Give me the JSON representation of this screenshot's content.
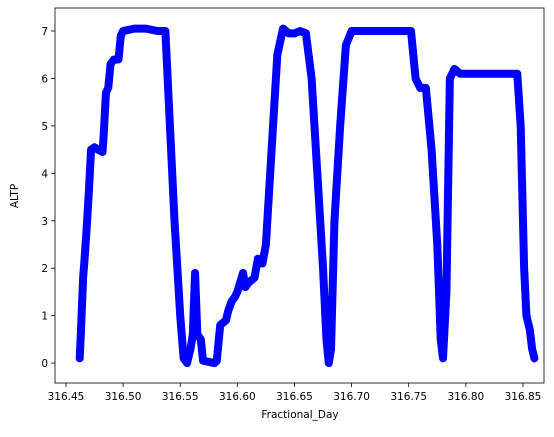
{
  "chart_data": {
    "type": "line",
    "xlabel": "Fractional_Day",
    "ylabel": "ALTP",
    "color": "#0000ff",
    "x": [
      316.462,
      316.463,
      316.465,
      316.466,
      316.468,
      316.47,
      316.472,
      316.475,
      316.478,
      316.482,
      316.483,
      316.485,
      316.487,
      316.489,
      316.492,
      316.496,
      316.498,
      316.5,
      316.51,
      316.52,
      316.53,
      316.537,
      316.54,
      316.545,
      316.55,
      316.553,
      316.556,
      316.559,
      316.561,
      316.563,
      316.565,
      316.568,
      316.57,
      316.58,
      316.582,
      316.585,
      316.59,
      316.592,
      316.595,
      316.598,
      316.6,
      316.605,
      316.607,
      316.61,
      316.615,
      316.618,
      316.622,
      316.625,
      316.63,
      316.635,
      316.64,
      316.645,
      316.65,
      316.655,
      316.66,
      316.665,
      316.67,
      316.675,
      316.678,
      316.68,
      316.682,
      316.685,
      316.69,
      316.695,
      316.7,
      316.72,
      316.74,
      316.752,
      316.756,
      316.76,
      316.765,
      316.77,
      316.775,
      316.778,
      316.78,
      316.783,
      316.786,
      316.79,
      316.795,
      316.81,
      316.83,
      316.845,
      316.848,
      316.851,
      316.853,
      316.856,
      316.858,
      316.86
    ],
    "values": [
      0.1,
      0.6,
      1.8,
      2.1,
      2.8,
      3.6,
      4.5,
      4.55,
      4.5,
      4.45,
      4.8,
      5.7,
      5.8,
      6.3,
      6.4,
      6.4,
      6.9,
      7.0,
      7.05,
      7.05,
      7.0,
      7.0,
      5.5,
      3.0,
      1.0,
      0.1,
      0.0,
      0.3,
      0.6,
      1.9,
      0.6,
      0.5,
      0.05,
      0.0,
      0.05,
      0.8,
      0.9,
      1.1,
      1.3,
      1.4,
      1.5,
      1.9,
      1.6,
      1.7,
      1.8,
      2.2,
      2.1,
      2.5,
      4.5,
      6.5,
      7.05,
      6.95,
      6.95,
      7.0,
      6.95,
      6.0,
      4.0,
      2.0,
      0.5,
      0.0,
      0.3,
      3.0,
      5.0,
      6.7,
      7.0,
      7.0,
      7.0,
      7.0,
      6.0,
      5.8,
      5.8,
      4.5,
      2.5,
      0.5,
      0.1,
      1.5,
      6.0,
      6.2,
      6.1,
      6.1,
      6.1,
      6.1,
      5.0,
      2.0,
      1.0,
      0.7,
      0.3,
      0.1
    ],
    "xlim": [
      316.4404,
      316.8684
    ],
    "ylim": [
      -0.42,
      7.485
    ],
    "xticks": [
      {
        "value": 316.45,
        "label": "316.45"
      },
      {
        "value": 316.5,
        "label": "316.50"
      },
      {
        "value": 316.55,
        "label": "316.55"
      },
      {
        "value": 316.6,
        "label": "316.60"
      },
      {
        "value": 316.65,
        "label": "316.65"
      },
      {
        "value": 316.7,
        "label": "316.70"
      },
      {
        "value": 316.75,
        "label": "316.75"
      },
      {
        "value": 316.8,
        "label": "316.80"
      },
      {
        "value": 316.85,
        "label": "316.85"
      }
    ],
    "yticks": [
      0,
      1,
      2,
      3,
      4,
      5,
      6,
      7
    ]
  }
}
